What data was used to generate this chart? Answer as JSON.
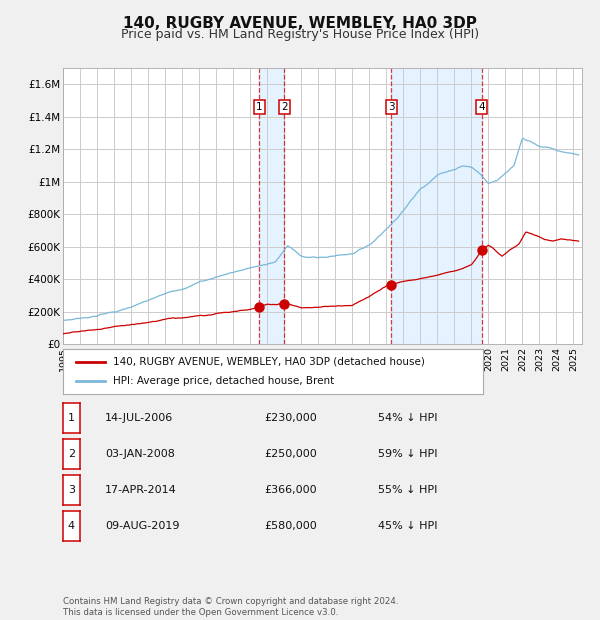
{
  "title": "140, RUGBY AVENUE, WEMBLEY, HA0 3DP",
  "subtitle": "Price paid vs. HM Land Registry's House Price Index (HPI)",
  "title_fontsize": 11,
  "subtitle_fontsize": 9,
  "hpi_color": "#7ab8d9",
  "price_color": "#cc0000",
  "background_color": "#f0f0f0",
  "plot_bg_color": "#ffffff",
  "shade_color": "#ddeeff",
  "grid_color": "#cccccc",
  "transactions": [
    {
      "label": "1",
      "date_num": 2006.54,
      "price": 230000
    },
    {
      "label": "2",
      "date_num": 2008.01,
      "price": 250000
    },
    {
      "label": "3",
      "date_num": 2014.29,
      "price": 366000
    },
    {
      "label": "4",
      "date_num": 2019.6,
      "price": 580000
    }
  ],
  "shade_ranges": [
    [
      2006.54,
      2008.01
    ],
    [
      2014.29,
      2019.6
    ]
  ],
  "xmin": 1995.0,
  "xmax": 2025.5,
  "ymin": 0,
  "ymax": 1700000,
  "yticks": [
    0,
    200000,
    400000,
    600000,
    800000,
    1000000,
    1200000,
    1400000,
    1600000
  ],
  "ytick_labels": [
    "£0",
    "£200K",
    "£400K",
    "£600K",
    "£800K",
    "£1M",
    "£1.2M",
    "£1.4M",
    "£1.6M"
  ],
  "xticks": [
    1995,
    1996,
    1997,
    1998,
    1999,
    2000,
    2001,
    2002,
    2003,
    2004,
    2005,
    2006,
    2007,
    2008,
    2009,
    2010,
    2011,
    2012,
    2013,
    2014,
    2015,
    2016,
    2017,
    2018,
    2019,
    2020,
    2021,
    2022,
    2023,
    2024,
    2025
  ],
  "legend_label_price": "140, RUGBY AVENUE, WEMBLEY, HA0 3DP (detached house)",
  "legend_label_hpi": "HPI: Average price, detached house, Brent",
  "table_rows": [
    {
      "num": "1",
      "date": "14-JUL-2006",
      "price": "£230,000",
      "hpi": "54% ↓ HPI"
    },
    {
      "num": "2",
      "date": "03-JAN-2008",
      "price": "£250,000",
      "hpi": "59% ↓ HPI"
    },
    {
      "num": "3",
      "date": "17-APR-2014",
      "price": "£366,000",
      "hpi": "55% ↓ HPI"
    },
    {
      "num": "4",
      "date": "09-AUG-2019",
      "price": "£580,000",
      "hpi": "45% ↓ HPI"
    }
  ],
  "footnote": "Contains HM Land Registry data © Crown copyright and database right 2024.\nThis data is licensed under the Open Government Licence v3.0."
}
